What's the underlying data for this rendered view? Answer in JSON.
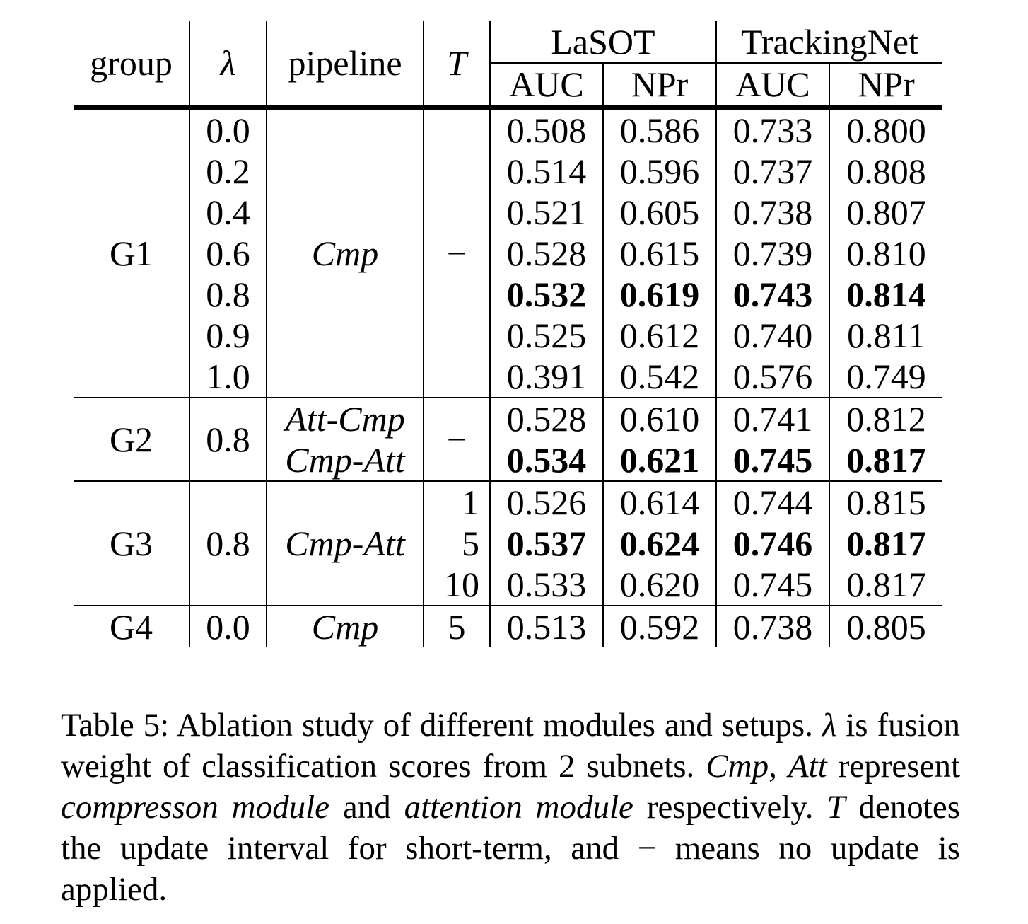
{
  "table": {
    "headers": {
      "group": "group",
      "lambda": "λ",
      "pipeline": "pipeline",
      "T": "T",
      "lasot": "LaSOT",
      "trackingnet": "TrackingNet",
      "auc": "AUC",
      "npr": "NPr"
    },
    "g1": {
      "group": "G1",
      "pipeline": "Cmp",
      "T": "−",
      "rows": [
        {
          "lambda": "0.0",
          "lasot_auc": "0.508",
          "lasot_npr": "0.586",
          "tn_auc": "0.733",
          "tn_npr": "0.800"
        },
        {
          "lambda": "0.2",
          "lasot_auc": "0.514",
          "lasot_npr": "0.596",
          "tn_auc": "0.737",
          "tn_npr": "0.808"
        },
        {
          "lambda": "0.4",
          "lasot_auc": "0.521",
          "lasot_npr": "0.605",
          "tn_auc": "0.738",
          "tn_npr": "0.807"
        },
        {
          "lambda": "0.6",
          "lasot_auc": "0.528",
          "lasot_npr": "0.615",
          "tn_auc": "0.739",
          "tn_npr": "0.810"
        },
        {
          "lambda": "0.8",
          "lasot_auc": "0.532",
          "lasot_npr": "0.619",
          "tn_auc": "0.743",
          "tn_npr": "0.814",
          "bold": true
        },
        {
          "lambda": "0.9",
          "lasot_auc": "0.525",
          "lasot_npr": "0.612",
          "tn_auc": "0.740",
          "tn_npr": "0.811"
        },
        {
          "lambda": "1.0",
          "lasot_auc": "0.391",
          "lasot_npr": "0.542",
          "tn_auc": "0.576",
          "tn_npr": "0.749"
        }
      ]
    },
    "g2": {
      "group": "G2",
      "lambda": "0.8",
      "T": "−",
      "rows": [
        {
          "pipeline": "Att-Cmp",
          "lasot_auc": "0.528",
          "lasot_npr": "0.610",
          "tn_auc": "0.741",
          "tn_npr": "0.812"
        },
        {
          "pipeline": "Cmp-Att",
          "lasot_auc": "0.534",
          "lasot_npr": "0.621",
          "tn_auc": "0.745",
          "tn_npr": "0.817",
          "bold": true
        }
      ]
    },
    "g3": {
      "group": "G3",
      "lambda": "0.8",
      "pipeline": "Cmp-Att",
      "rows": [
        {
          "T": "1",
          "lasot_auc": "0.526",
          "lasot_npr": "0.614",
          "tn_auc": "0.744",
          "tn_npr": "0.815"
        },
        {
          "T": "5",
          "lasot_auc": "0.537",
          "lasot_npr": "0.624",
          "tn_auc": "0.746",
          "tn_npr": "0.817",
          "bold": true
        },
        {
          "T": "10",
          "lasot_auc": "0.533",
          "lasot_npr": "0.620",
          "tn_auc": "0.745",
          "tn_npr": "0.817"
        }
      ]
    },
    "g4": {
      "group": "G4",
      "lambda": "0.0",
      "pipeline": "Cmp",
      "T": "5",
      "lasot_auc": "0.513",
      "lasot_npr": "0.592",
      "tn_auc": "0.738",
      "tn_npr": "0.805"
    }
  },
  "caption": {
    "p1": "Table 5: Ablation study of different modules and setups. ",
    "lambda": "λ",
    "p2": " is fusion weight of classification scores from 2 subnets. ",
    "cmp": "Cmp",
    "p3": ", ",
    "att": "Att",
    "p4": " represent ",
    "compression": "compresson module",
    "p5": " and ",
    "attention": "attention module",
    "p6": " respectively. ",
    "T": "T",
    "p7": " denotes the update interval for short-term, and ",
    "minus": "−",
    "p8": " means no update is applied."
  }
}
